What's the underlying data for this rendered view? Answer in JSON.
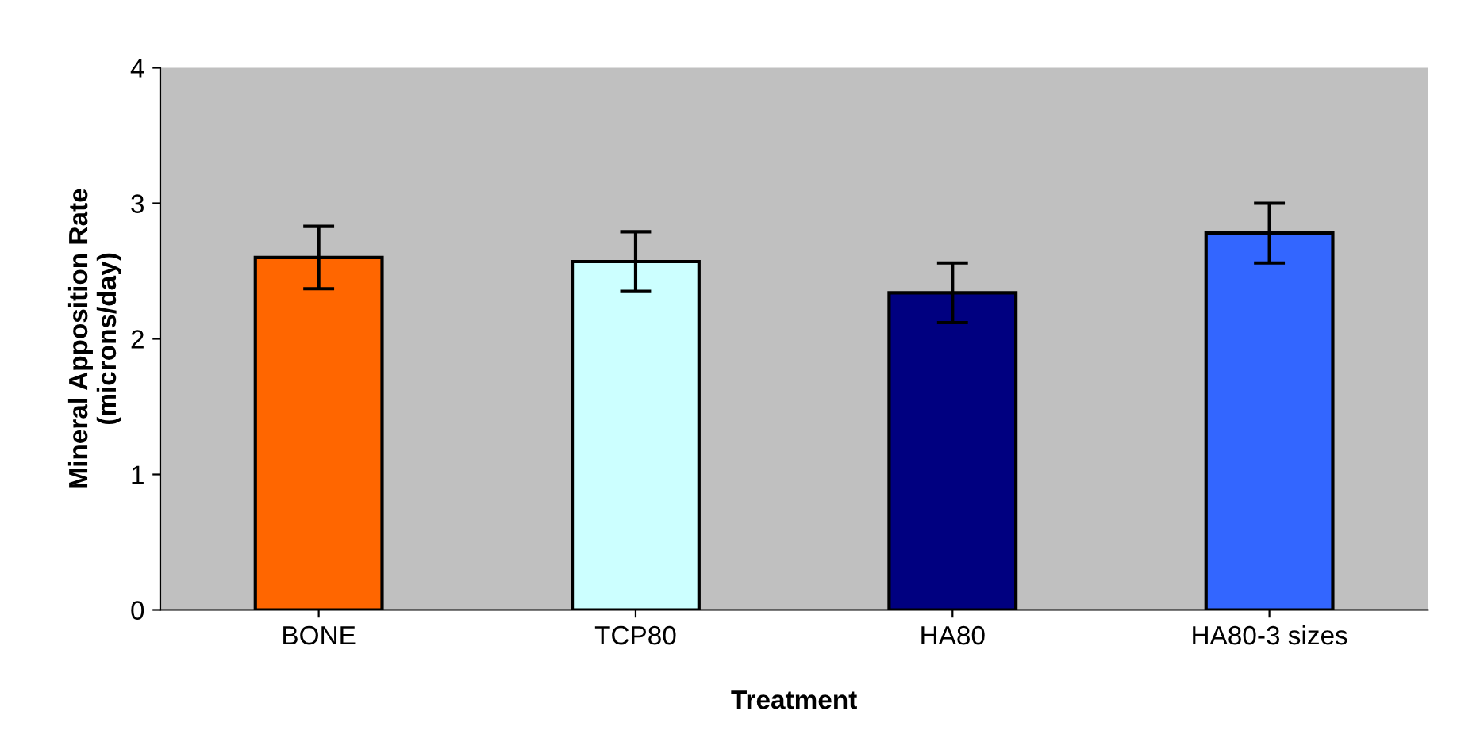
{
  "chart_data": {
    "type": "bar",
    "xlabel": "Treatment",
    "ylabel": "Mineral Apposition Rate\n(microns/day)",
    "categories": [
      "BONE",
      "TCP80",
      "HA80",
      "HA80-3 sizes"
    ],
    "values": [
      2.6,
      2.57,
      2.34,
      2.78
    ],
    "errors": [
      0.23,
      0.22,
      0.22,
      0.22
    ],
    "colors": [
      "#ff6600",
      "#ccffff",
      "#000080",
      "#3366ff"
    ],
    "ylim": [
      0,
      4
    ],
    "yticks": [
      0,
      1,
      2,
      3,
      4
    ],
    "grid": false
  }
}
